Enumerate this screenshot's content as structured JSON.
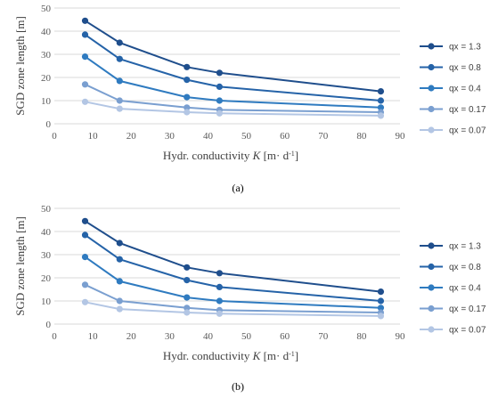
{
  "chart_data": [
    {
      "type": "line",
      "caption": "(a)",
      "ylabel": "SGD zone length [m]",
      "xlabel_prefix": "Hydr. conductivity ",
      "xlabel_var": "K",
      "xlabel_unit": " [m· d",
      "xlabel_exp": "-1",
      "xlabel_close": "]",
      "xlim": [
        0,
        90
      ],
      "ylim": [
        0,
        50
      ],
      "xticks": [
        0,
        10,
        20,
        30,
        40,
        50,
        60,
        70,
        80,
        90
      ],
      "yticks": [
        0,
        10,
        20,
        30,
        40,
        50
      ],
      "grid": "horizontal",
      "legend": "right",
      "x": [
        8,
        17,
        34.5,
        43,
        85
      ],
      "series": [
        {
          "name": "qx = 1.3",
          "color": "#1f4e8c",
          "values": [
            44.5,
            35,
            24.5,
            22,
            14
          ]
        },
        {
          "name": "qx = 0.8",
          "color": "#2563a8",
          "values": [
            38.5,
            28,
            19,
            16,
            10
          ]
        },
        {
          "name": "qx = 0.4",
          "color": "#2f7bc0",
          "values": [
            29,
            18.5,
            11.5,
            10,
            7
          ]
        },
        {
          "name": "qx = 0.17",
          "color": "#7a9fd0",
          "values": [
            17,
            10,
            7,
            6,
            5
          ]
        },
        {
          "name": "qx = 0.07",
          "color": "#b3c6e4",
          "values": [
            9.5,
            6.5,
            5,
            4.5,
            3.5
          ]
        }
      ]
    },
    {
      "type": "line",
      "caption": "(b)",
      "ylabel": "SGD zone length [m]",
      "xlabel_prefix": "Hydr. conductivity ",
      "xlabel_var": "K",
      "xlabel_unit": " [m· d",
      "xlabel_exp": "-1",
      "xlabel_close": "]",
      "xlim": [
        0,
        90
      ],
      "ylim": [
        0,
        50
      ],
      "xticks": [
        0,
        10,
        20,
        30,
        40,
        50,
        60,
        70,
        80,
        90
      ],
      "yticks": [
        0,
        10,
        20,
        30,
        40,
        50
      ],
      "grid": "horizontal",
      "legend": "right",
      "x": [
        8,
        17,
        34.5,
        43,
        85
      ],
      "series": [
        {
          "name": "qx = 1.3",
          "color": "#1f4e8c",
          "values": [
            44.5,
            35,
            24.5,
            22,
            14
          ]
        },
        {
          "name": "qx = 0.8",
          "color": "#2563a8",
          "values": [
            38.5,
            28,
            19,
            16,
            10
          ]
        },
        {
          "name": "qx = 0.4",
          "color": "#2f7bc0",
          "values": [
            29,
            18.5,
            11.5,
            10,
            7
          ]
        },
        {
          "name": "qx = 0.17",
          "color": "#7a9fd0",
          "values": [
            17,
            10,
            7,
            6,
            5
          ]
        },
        {
          "name": "qx = 0.07",
          "color": "#b3c6e4",
          "values": [
            9.5,
            6.5,
            5,
            4.5,
            3.5
          ]
        }
      ]
    }
  ]
}
